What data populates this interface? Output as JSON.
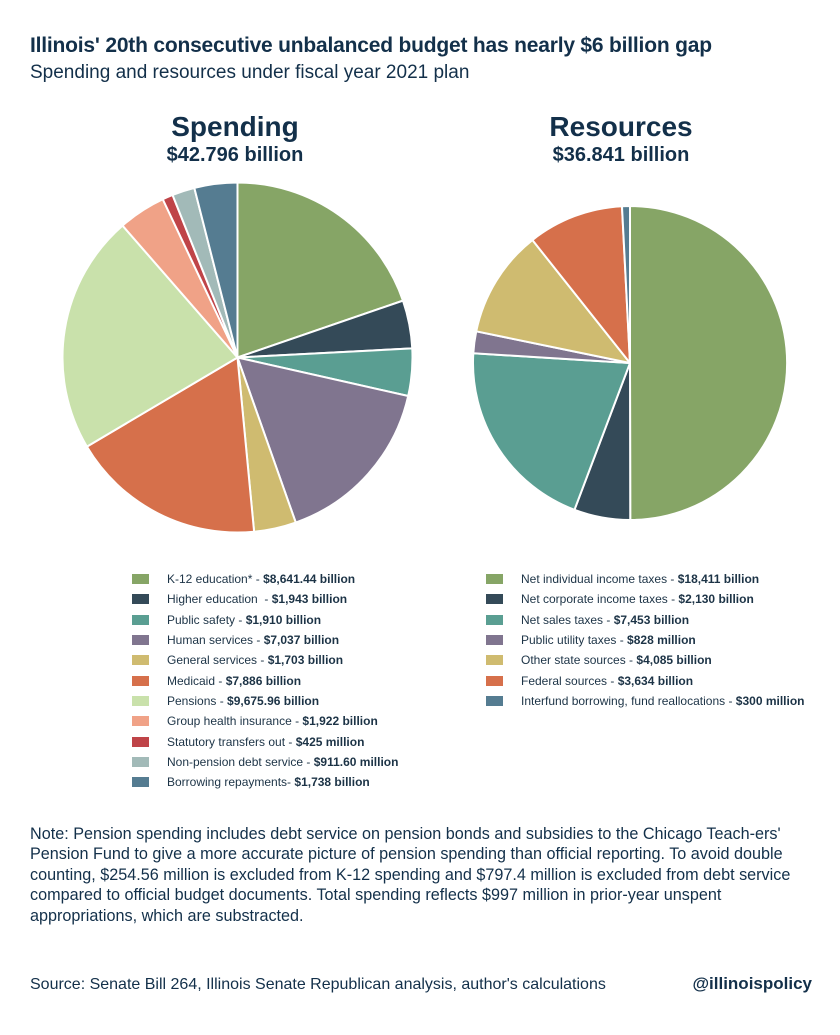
{
  "title": "Illinois' 20th consecutive unbalanced budget has nearly $6 billion gap",
  "subtitle": "Spending and resources under fiscal year 2021 plan",
  "note": "Note: Pension spending includes debt service on pension bonds and subsidies to the Chicago Teach-ers' Pension Fund to give a more accurate picture of pension spending than official reporting. To avoid double counting, $254.56 million is excluded from K-12 spending and $797.4 million is excluded from debt service compared to official budget documents. Total spending reflects $997 million in prior-year unspent appropriations, which are substracted.",
  "source": "Source: Senate Bill 264, Illinois Senate Republican analysis, author's calculations",
  "handle": "@illinoispolicy",
  "chart_data": [
    {
      "type": "pie",
      "title": "Spending",
      "total": "$42.796 billion",
      "slices": [
        {
          "label": "K-12 education* - ",
          "value_text": "$8,641.44 billion",
          "value": 8641.44,
          "color": "#86a566"
        },
        {
          "label": "Higher education  - ",
          "value_text": "$1,943 billion",
          "value": 1943,
          "color": "#344a58"
        },
        {
          "label": "Public safety - ",
          "value_text": "$1,910 billion",
          "value": 1910,
          "color": "#5a9e92"
        },
        {
          "label": "Human services - ",
          "value_text": "$7,037 billion",
          "value": 7037,
          "color": "#80758f"
        },
        {
          "label": "General services - ",
          "value_text": "$1,703 billion",
          "value": 1703,
          "color": "#cfbb70"
        },
        {
          "label": "Medicaid - ",
          "value_text": "$7,886 billion",
          "value": 7886,
          "color": "#d6704b"
        },
        {
          "label": "Pensions - ",
          "value_text": "$9,675.96 billion",
          "value": 9675.96,
          "color": "#c9e1ab"
        },
        {
          "label": "Group health insurance - ",
          "value_text": "$1,922 billion",
          "value": 1922,
          "color": "#f0a287"
        },
        {
          "label": "Statutory transfers out - ",
          "value_text": "$425 million",
          "value": 425,
          "color": "#bf4448"
        },
        {
          "label": "Non-pension debt service - ",
          "value_text": "$911.60 million",
          "value": 911.6,
          "color": "#a2bab8"
        },
        {
          "label": "Borrowing repayments- ",
          "value_text": "$1,738 billion",
          "value": 1738,
          "color": "#557c91"
        }
      ]
    },
    {
      "type": "pie",
      "title": "Resources",
      "total": "$36.841 billion",
      "slices": [
        {
          "label": "Net individual income taxes - ",
          "value_text": "$18,411 billion",
          "value": 18411,
          "color": "#86a566"
        },
        {
          "label": "Net corporate income taxes - ",
          "value_text": "$2,130 billion",
          "value": 2130,
          "color": "#344a58"
        },
        {
          "label": "Net sales taxes - ",
          "value_text": "$7,453 billion",
          "value": 7453,
          "color": "#5a9e92"
        },
        {
          "label": "Public utility taxes - ",
          "value_text": "$828 million",
          "value": 828,
          "color": "#80758f"
        },
        {
          "label": "Other state sources - ",
          "value_text": "$4,085 billion",
          "value": 4085,
          "color": "#cfbb70"
        },
        {
          "label": "Federal sources - ",
          "value_text": "$3,634 billion",
          "value": 3634,
          "color": "#d6704b"
        },
        {
          "label": "Interfund borrowing, fund reallocations - ",
          "value_text": "$300 million",
          "value": 300,
          "color": "#557c91"
        }
      ]
    }
  ]
}
